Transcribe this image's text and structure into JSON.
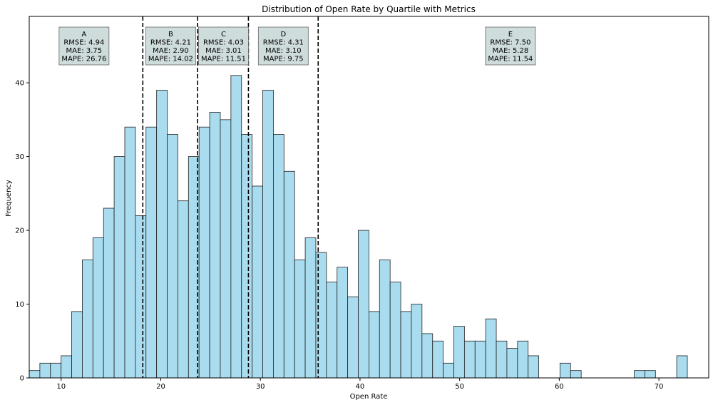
{
  "chart_data": {
    "type": "histogram",
    "title": "Distribution of Open Rate by Quartile with Metrics",
    "xlabel": "Open Rate",
    "ylabel": "Frequency",
    "xlim": [
      6.8,
      75.0
    ],
    "ylim": [
      0,
      49
    ],
    "x_ticks": [
      10,
      20,
      30,
      40,
      50,
      60,
      70
    ],
    "y_ticks": [
      0,
      10,
      20,
      30,
      40
    ],
    "bin_start": 6.8,
    "bin_width": 1.0654,
    "bar_color": "#a8dcee",
    "bar_edge_color": "#222222",
    "counts": [
      1,
      2,
      2,
      3,
      9,
      16,
      19,
      23,
      30,
      34,
      22,
      34,
      39,
      33,
      24,
      30,
      34,
      36,
      35,
      41,
      33,
      26,
      39,
      33,
      28,
      16,
      19,
      17,
      13,
      15,
      11,
      20,
      9,
      16,
      13,
      9,
      10,
      6,
      5,
      2,
      7,
      5,
      5,
      8,
      5,
      4,
      5,
      3,
      0,
      0,
      2,
      1,
      0,
      0,
      0,
      0,
      0,
      1,
      1,
      0,
      0,
      3
    ],
    "quartile_lines": [
      18.2,
      23.7,
      28.8,
      35.8
    ],
    "segments": [
      {
        "x": 12.3,
        "label": "A",
        "rmse": "RMSE: 4.94",
        "mae": "MAE: 3.75",
        "mape": "MAPE: 26.76"
      },
      {
        "x": 21.0,
        "label": "B",
        "rmse": "RMSE: 4.21",
        "mae": "MAE: 2.90",
        "mape": "MAPE: 14.02"
      },
      {
        "x": 26.3,
        "label": "C",
        "rmse": "RMSE: 4.03",
        "mae": "MAE: 3.01",
        "mape": "MAPE: 11.51"
      },
      {
        "x": 32.3,
        "label": "D",
        "rmse": "RMSE: 4.31",
        "mae": "MAE: 3.10",
        "mape": "MAPE: 9.75"
      },
      {
        "x": 55.1,
        "label": "E",
        "rmse": "RMSE: 7.50",
        "mae": "MAE: 5.28",
        "mape": "MAPE: 11.54"
      }
    ],
    "grid": false,
    "legend": false
  }
}
